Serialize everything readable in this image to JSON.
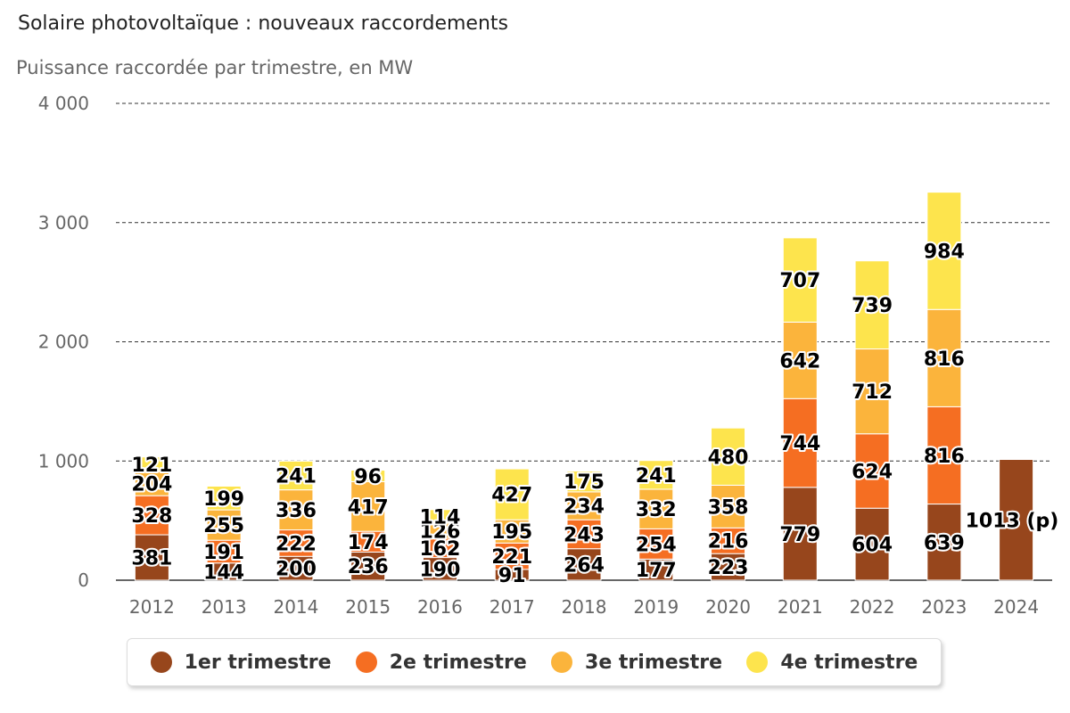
{
  "header": {
    "title": "Solaire photovoltaïque : nouveaux raccordements",
    "subtitle": "Puissance raccordée par trimestre, en MW"
  },
  "chart_data": {
    "type": "bar",
    "stacked": true,
    "title": "Solaire photovoltaïque : nouveaux raccordements",
    "subtitle": "Puissance raccordée par trimestre, en MW",
    "xlabel": "",
    "ylabel": "",
    "ylim": [
      0,
      4000
    ],
    "yticks": [
      0,
      1000,
      2000,
      3000,
      4000
    ],
    "ytick_labels": [
      "0",
      "1 000",
      "2 000",
      "3 000",
      "4 000"
    ],
    "grid": true,
    "legend_position": "bottom",
    "categories": [
      "2012",
      "2013",
      "2014",
      "2015",
      "2016",
      "2017",
      "2018",
      "2019",
      "2020",
      "2021",
      "2022",
      "2023",
      "2024"
    ],
    "series": [
      {
        "name": "1er trimestre",
        "color": "#97461c",
        "values": [
          381,
          144,
          200,
          236,
          190,
          91,
          264,
          177,
          223,
          779,
          604,
          639,
          1013
        ],
        "labels": [
          "381",
          "144",
          "200",
          "236",
          "190",
          "91",
          "264",
          "177",
          "223",
          "779",
          "604",
          "639",
          "1013 (p)"
        ]
      },
      {
        "name": "2e trimestre",
        "color": "#f56e22",
        "values": [
          328,
          191,
          222,
          174,
          162,
          221,
          243,
          254,
          216,
          744,
          624,
          816,
          null
        ],
        "labels": [
          "328",
          "191",
          "222",
          "174",
          "162",
          "221",
          "243",
          "254",
          "216",
          "744",
          "624",
          "816",
          ""
        ]
      },
      {
        "name": "3e trimestre",
        "color": "#fbb43c",
        "values": [
          204,
          255,
          336,
          417,
          126,
          195,
          234,
          332,
          358,
          642,
          712,
          816,
          null
        ],
        "labels": [
          "204",
          "255",
          "336",
          "417",
          "126",
          "195",
          "234",
          "332",
          "358",
          "642",
          "712",
          "816",
          ""
        ]
      },
      {
        "name": "4e trimestre",
        "color": "#fde44d",
        "values": [
          121,
          199,
          241,
          96,
          114,
          427,
          175,
          241,
          480,
          707,
          739,
          984,
          null
        ],
        "labels": [
          "121",
          "199",
          "241",
          "96",
          "114",
          "427",
          "175",
          "241",
          "480",
          "707",
          "739",
          "984",
          ""
        ]
      }
    ]
  }
}
